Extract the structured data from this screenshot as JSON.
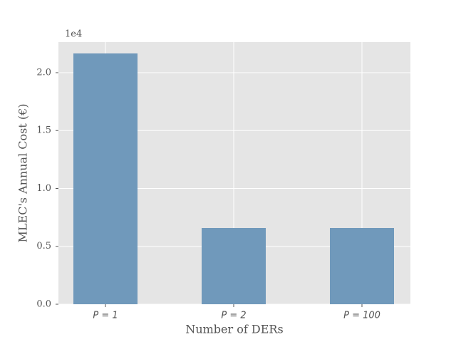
{
  "chart_data": {
    "type": "bar",
    "x_label": "Number of DERs",
    "y_label": "MLEC's Annual Cost (€)",
    "y_offset_label": "1e4",
    "categories": [
      "P = 1",
      "P = 2",
      "P = 100"
    ],
    "values": [
      21660,
      6585,
      6585
    ],
    "color": "#7099bb",
    "ylim": [
      0,
      22646
    ],
    "yticks": [
      {
        "value": 0,
        "label": "0.0"
      },
      {
        "value": 5000,
        "label": "0.5"
      },
      {
        "value": 10000,
        "label": "1.0"
      },
      {
        "value": 15000,
        "label": "1.5"
      },
      {
        "value": 20000,
        "label": "2.0"
      }
    ],
    "grid": true
  }
}
